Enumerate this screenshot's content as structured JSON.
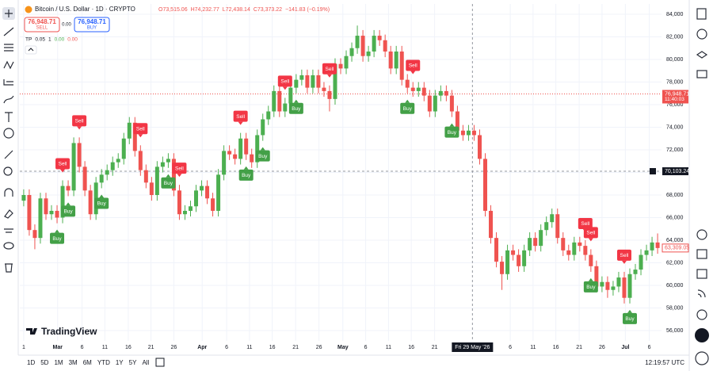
{
  "chart_data": {
    "type": "candlestick",
    "open": [
      67500,
      68000,
      64900,
      64200,
      67700,
      66300,
      66600,
      66000,
      68800,
      68400,
      72600,
      70500,
      68400,
      66300,
      69100,
      69800,
      70200,
      70900,
      71200,
      73000,
      74400,
      71900,
      70200,
      69100,
      68000,
      70500,
      70900,
      71200,
      68400,
      66300,
      66600,
      67000,
      68400,
      68800,
      67700,
      66600,
      69800,
      71900,
      71600,
      71200,
      73000,
      71600,
      70900,
      73300,
      74700,
      75400,
      77200,
      75400,
      76100,
      77500,
      78200,
      78600,
      77500,
      78600,
      77500,
      77200,
      76500,
      79600,
      79200,
      80300,
      81000,
      82100,
      80300,
      80700,
      82100,
      81700,
      80700,
      79200,
      80700,
      78200,
      77500,
      77200,
      77500,
      76800,
      75400,
      76800,
      77200,
      76800,
      75400,
      73700,
      73300,
      73700,
      73300,
      71200,
      66600,
      64200,
      62100,
      61000,
      63100,
      62700,
      61700,
      63100,
      64200,
      63500,
      64900,
      65600,
      66300,
      64200,
      63100,
      62700,
      63800,
      63500,
      62700,
      61700,
      59900,
      60300,
      59600,
      59900,
      60700,
      58900,
      61000,
      61400,
      62700,
      63100,
      63800
    ],
    "high": [
      68500,
      68500,
      65400,
      68200,
      68200,
      67100,
      67100,
      69300,
      69300,
      73100,
      73100,
      71000,
      68900,
      69600,
      70300,
      70700,
      71400,
      71700,
      73500,
      74900,
      74900,
      72400,
      70700,
      69600,
      71000,
      71400,
      71700,
      71700,
      68900,
      67100,
      67500,
      68900,
      69300,
      69300,
      68200,
      70300,
      72400,
      72400,
      72100,
      73500,
      73500,
      72100,
      73800,
      75200,
      75900,
      77700,
      77700,
      76600,
      78000,
      78700,
      79100,
      79100,
      79100,
      79100,
      78000,
      77700,
      80100,
      80100,
      80800,
      81500,
      83000,
      82600,
      81200,
      82600,
      82600,
      82200,
      81200,
      81200,
      81200,
      78700,
      78000,
      78000,
      78000,
      77300,
      77300,
      77700,
      77700,
      77300,
      75900,
      74200,
      74200,
      74200,
      73800,
      71700,
      67100,
      64700,
      62600,
      63600,
      63600,
      63200,
      63600,
      64700,
      64700,
      65400,
      66100,
      66800,
      66800,
      64700,
      63600,
      64300,
      64300,
      64000,
      63200,
      62200,
      60800,
      60800,
      60400,
      61200,
      61200,
      61500,
      61900,
      63200,
      63600,
      64300,
      64600
    ],
    "low": [
      67000,
      64400,
      63200,
      63700,
      65800,
      65800,
      65500,
      65500,
      67900,
      67900,
      70000,
      67900,
      65800,
      65800,
      68600,
      69300,
      69700,
      70400,
      70700,
      72500,
      71400,
      69700,
      68600,
      67500,
      67500,
      70000,
      70400,
      67900,
      65800,
      65800,
      66100,
      66500,
      67900,
      67200,
      66100,
      66100,
      69300,
      71100,
      70700,
      70700,
      71100,
      70400,
      70400,
      72800,
      74200,
      74900,
      74900,
      74900,
      75600,
      77000,
      77700,
      77000,
      77000,
      77000,
      76700,
      75400,
      76000,
      78700,
      78700,
      79800,
      80500,
      79800,
      79800,
      80200,
      81200,
      80200,
      78700,
      78700,
      77700,
      77000,
      76700,
      76700,
      76300,
      74900,
      74900,
      76300,
      76300,
      74900,
      73200,
      72800,
      72800,
      72800,
      70700,
      66100,
      63700,
      61600,
      59600,
      60500,
      62200,
      61200,
      61200,
      62600,
      63000,
      63000,
      64400,
      65100,
      63700,
      62600,
      62200,
      62200,
      63000,
      62200,
      61200,
      59400,
      59400,
      58900,
      59100,
      59400,
      58400,
      58400,
      60500,
      60900,
      62200,
      62600,
      62800
    ],
    "close": [
      68000,
      64900,
      64200,
      67700,
      66300,
      66600,
      66000,
      68800,
      68400,
      72600,
      70500,
      68400,
      66300,
      69100,
      69800,
      70200,
      70900,
      71200,
      73000,
      74400,
      71900,
      70200,
      69100,
      68000,
      70500,
      70900,
      71200,
      68400,
      66300,
      66600,
      67000,
      68400,
      68800,
      67700,
      66600,
      69800,
      71900,
      71600,
      71200,
      73000,
      71600,
      70900,
      73300,
      74700,
      75400,
      77200,
      75400,
      76100,
      77500,
      78200,
      78600,
      77500,
      78600,
      77500,
      77200,
      76500,
      79600,
      79200,
      80300,
      81000,
      82100,
      80300,
      80700,
      82100,
      81700,
      80700,
      79200,
      80700,
      78200,
      77500,
      77200,
      77500,
      76800,
      75400,
      76800,
      77200,
      76800,
      75400,
      73700,
      73300,
      73700,
      73300,
      71200,
      66600,
      64200,
      62100,
      61000,
      63100,
      62700,
      61700,
      63100,
      64200,
      63500,
      64900,
      65600,
      66300,
      64200,
      63100,
      62700,
      63800,
      63500,
      62700,
      61700,
      59900,
      60300,
      59600,
      59900,
      60700,
      58900,
      61000,
      61400,
      62700,
      63100,
      63800,
      63309.05
    ],
    "up_color": "#4caf50",
    "down_color": "#ef5350",
    "xlim": [
      -0.7,
      114.7
    ],
    "ylim": [
      55090,
      84910
    ],
    "xticks": [
      {
        "value": 0,
        "label": "1"
      },
      {
        "value": 6.1,
        "label": "Mar"
      },
      {
        "value": 10.5,
        "label": "6"
      },
      {
        "value": 14.6,
        "label": "11"
      },
      {
        "value": 18.8,
        "label": "16"
      },
      {
        "value": 22.9,
        "label": "21"
      },
      {
        "value": 27,
        "label": "26"
      },
      {
        "value": 32.1,
        "label": "Apr"
      },
      {
        "value": 36.5,
        "label": "6"
      },
      {
        "value": 40.6,
        "label": "11"
      },
      {
        "value": 44.7,
        "label": "16"
      },
      {
        "value": 48.9,
        "label": "21"
      },
      {
        "value": 53.1,
        "label": "26"
      },
      {
        "value": 57.4,
        "label": "May"
      },
      {
        "value": 61.5,
        "label": "6"
      },
      {
        "value": 65.6,
        "label": "11"
      },
      {
        "value": 69.7,
        "label": "16"
      },
      {
        "value": 73.9,
        "label": "21"
      },
      {
        "value": 87.5,
        "label": "6"
      },
      {
        "value": 91.6,
        "label": "11"
      },
      {
        "value": 95.7,
        "label": "16"
      },
      {
        "value": 99.9,
        "label": "21"
      },
      {
        "value": 104,
        "label": "26"
      },
      {
        "value": 108.2,
        "label": "Jul"
      },
      {
        "value": 112.5,
        "label": "6"
      }
    ],
    "yticks": [
      {
        "value": 56000,
        "label": "56,000"
      },
      {
        "value": 58000,
        "label": "58,000"
      },
      {
        "value": 60000,
        "label": "60,000"
      },
      {
        "value": 62000,
        "label": "62,000"
      },
      {
        "value": 64000,
        "label": "64,000"
      },
      {
        "value": 66000,
        "label": "66,000"
      },
      {
        "value": 68000,
        "label": "68,000"
      },
      {
        "value": 70000,
        "label": "70,000"
      },
      {
        "value": 72000,
        "label": "72,000"
      },
      {
        "value": 74000,
        "label": "74,000"
      },
      {
        "value": 76000,
        "label": "76,000"
      },
      {
        "value": 78000,
        "label": "78,000"
      },
      {
        "value": 80000,
        "label": "80,000"
      },
      {
        "value": 82000,
        "label": "82,000"
      },
      {
        "value": 84000,
        "label": "84,000"
      }
    ],
    "grid": true,
    "signals": [
      {
        "text": "Sell",
        "x": 7
      },
      {
        "text": "Sell",
        "x": 10
      },
      {
        "text": "Sell",
        "x": 21
      },
      {
        "text": "Sell",
        "x": 28
      },
      {
        "text": "Sell",
        "x": 39
      },
      {
        "text": "Sell",
        "x": 47
      },
      {
        "text": "Sell",
        "x": 55
      },
      {
        "text": "Sell",
        "x": 70
      },
      {
        "text": "Sell",
        "x": 101
      },
      {
        "text": "Sell",
        "x": 102
      },
      {
        "text": "Sell",
        "x": 108
      },
      {
        "text": "Buy",
        "x": 6
      },
      {
        "text": "Buy",
        "x": 8
      },
      {
        "text": "Buy",
        "x": 14
      },
      {
        "text": "Buy",
        "x": 26
      },
      {
        "text": "Buy",
        "x": 40
      },
      {
        "text": "Buy",
        "x": 43
      },
      {
        "text": "Buy",
        "x": 49
      },
      {
        "text": "Buy",
        "x": 69
      },
      {
        "text": "Buy",
        "x": 77
      },
      {
        "text": "Buy",
        "x": 102
      },
      {
        "text": "Buy",
        "x": 109
      }
    ],
    "crosshair": {
      "x": 80.7,
      "x_label": "Fri 29 May '26",
      "y": 70103.24,
      "y_label": "70,103.24"
    },
    "price_line": {
      "value": 76948.71,
      "label": "76,948.71",
      "time": "11:40:03"
    },
    "last_price": {
      "value": 63309.05,
      "label": "63,309.05"
    }
  },
  "ui": {
    "symbol": "Bitcoin / U.S. Dollar · 1D · CRYPTO",
    "ohlc": [
      "O73,515.06",
      "H74,232.77",
      "L72,438.14",
      "C73,373.22",
      "−141.83 (−0.19%)"
    ],
    "sell_price": "76,948.71",
    "sell_label": "SELL",
    "spread": "0.00",
    "buy_price": "76,948.71",
    "buy_label": "BUY",
    "tp": [
      "TP",
      "0.05",
      "1",
      "0.00",
      "0.00"
    ],
    "branding": "TradingView",
    "timeframes": [
      "1D",
      "5D",
      "1M",
      "3M",
      "6M",
      "YTD",
      "1Y",
      "5Y",
      "All"
    ],
    "clock": "12:19:57 UTC"
  }
}
